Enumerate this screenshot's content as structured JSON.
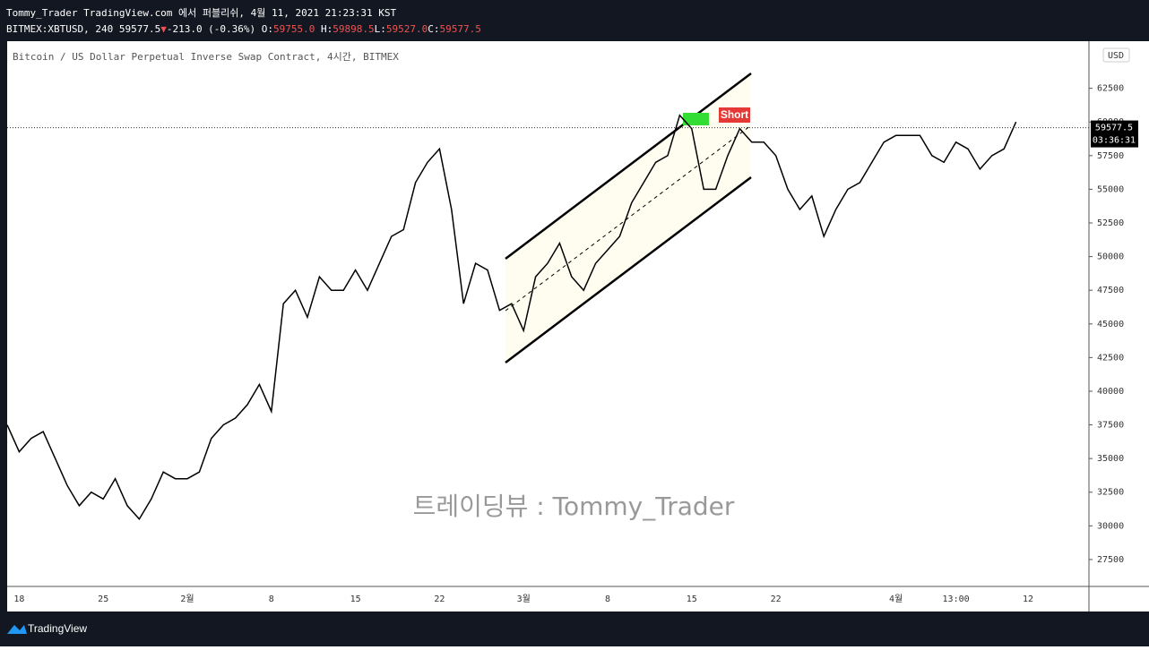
{
  "header": {
    "publisher": "Tommy_Trader TradingView.com 에서 퍼블리쉬, 4월 11, 2021 21:23:31 KST",
    "symbol": "BITMEX:XBTUSD, 240",
    "price": "59577.5",
    "arrow": "▼",
    "change": "-213.0 (-0.36%)",
    "o_label": "O:",
    "o": "59755.0",
    "h_label": "H:",
    "h": "59898.5",
    "l_label": "L:",
    "l": "59527.0",
    "c_label": "C:",
    "c": "59577.5",
    "currency": "USD",
    "countdown": "03:36:31",
    "brand": "TradingView"
  },
  "chart_data": {
    "type": "line",
    "title": "Bitcoin / US Dollar Perpetual Inverse Swap Contract, 4시간, BITMEX",
    "annotations": {
      "signal": "Short",
      "watermark": "트레이딩뷰 : Tommy_Trader"
    },
    "categories": [
      null,
      "18",
      null,
      null,
      null,
      null,
      null,
      null,
      "25",
      null,
      null,
      null,
      null,
      null,
      null,
      "2월",
      null,
      null,
      null,
      null,
      null,
      null,
      "8",
      null,
      null,
      null,
      null,
      null,
      null,
      "15",
      null,
      null,
      null,
      null,
      null,
      null,
      "22",
      null,
      null,
      null,
      null,
      null,
      null,
      "3월",
      null,
      null,
      null,
      null,
      null,
      null,
      "8",
      null,
      null,
      null,
      null,
      null,
      null,
      "15",
      null,
      null,
      null,
      null,
      null,
      null,
      "22",
      null,
      null,
      null,
      null,
      null,
      null,
      null,
      null,
      null,
      "4월",
      null,
      null,
      null,
      null,
      "13:00",
      null,
      null,
      null,
      null,
      null,
      "12"
    ],
    "values": [
      37500,
      35500,
      36500,
      37000,
      35000,
      33000,
      31500,
      32500,
      32000,
      33500,
      31500,
      30500,
      32000,
      34000,
      33500,
      33500,
      34000,
      36500,
      37500,
      38000,
      39000,
      40500,
      38500,
      46500,
      47500,
      45500,
      48500,
      47500,
      47500,
      49000,
      47500,
      49500,
      51500,
      52000,
      55500,
      57000,
      58000,
      53500,
      46500,
      49500,
      49000,
      46000,
      46500,
      44500,
      48500,
      49500,
      51000,
      48500,
      47500,
      49500,
      50500,
      51500,
      54000,
      55500,
      57000,
      57500,
      60500,
      59500,
      55000,
      55000,
      57500,
      59500,
      58500,
      58500,
      57500,
      55000,
      53500,
      54500,
      51500,
      53500,
      55000,
      55500,
      57000,
      58500,
      59000,
      59000,
      59000,
      57500,
      57000,
      58500,
      58000,
      56500,
      57500,
      58000,
      60000,
      null
    ],
    "color": "#000000",
    "last_price": 59577.5,
    "ylim": [
      25500,
      66000
    ],
    "yticks": [
      27500,
      30000,
      32500,
      35000,
      37500,
      40000,
      42500,
      45000,
      47500,
      50000,
      52500,
      55000,
      57500,
      60000,
      62500
    ]
  }
}
